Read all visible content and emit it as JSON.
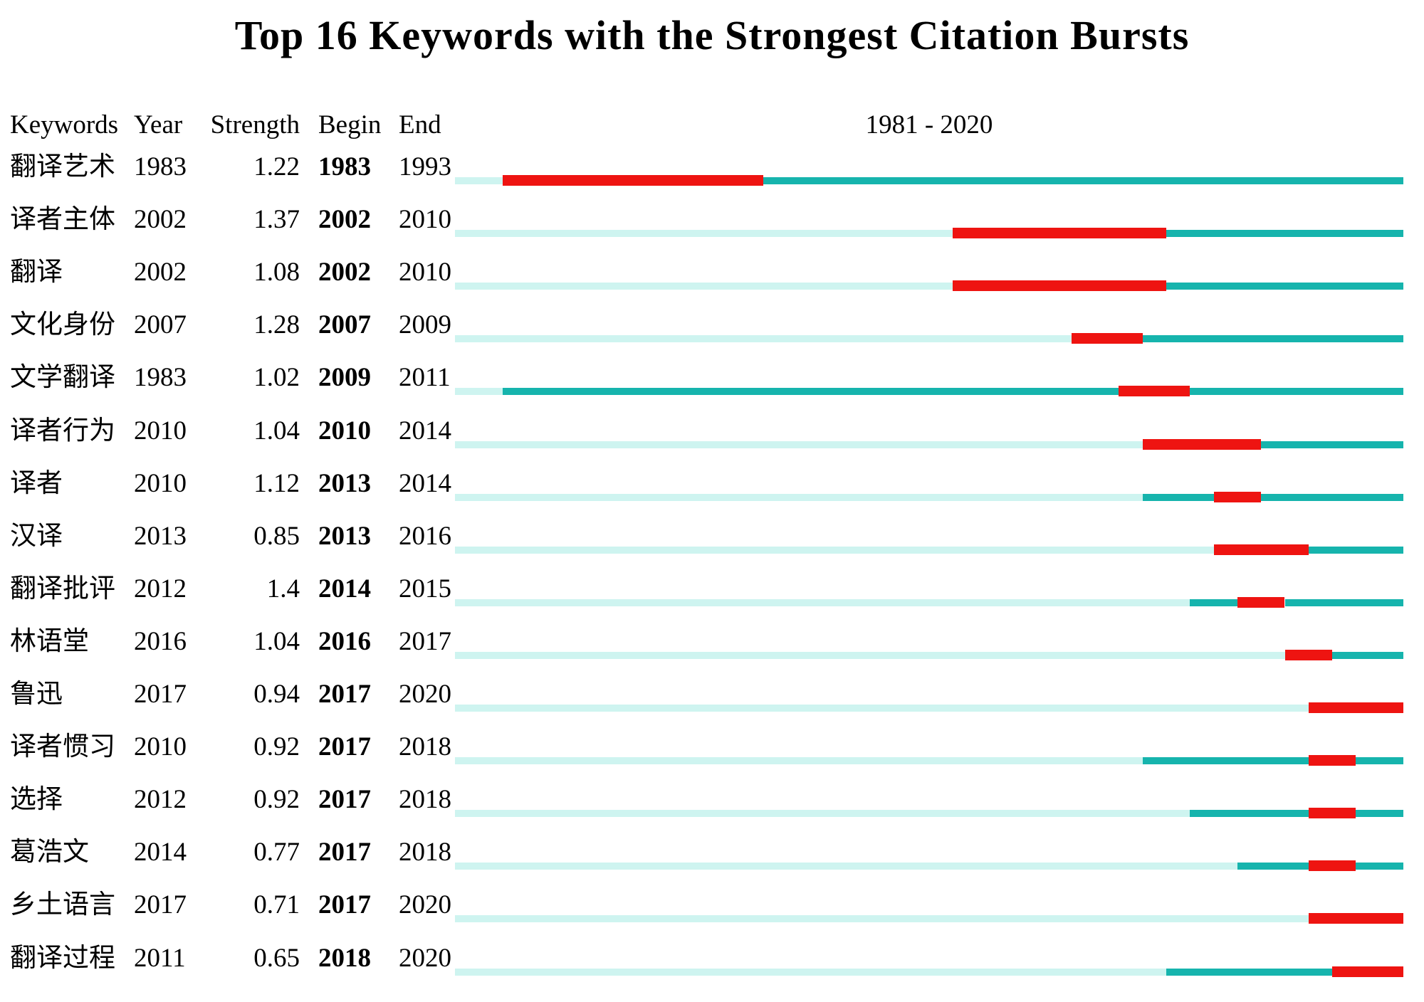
{
  "title": "Top 16 Keywords with the Strongest Citation Bursts",
  "columns": {
    "keywords": "Keywords",
    "year": "Year",
    "strength": "Strength",
    "begin": "Begin",
    "end": "End"
  },
  "timeline_label": "1981 - 2020",
  "colors": {
    "burst": "#ee1411",
    "active": "#16b4ad",
    "inactive": "#cef4f0"
  },
  "chart_data": {
    "type": "gantt",
    "subtype": "citation-burst-timeline",
    "title": "Top 16 Keywords with the Strongest Citation Bursts",
    "x_range": [
      1981,
      2020
    ],
    "legend_note": "pale = before first appearance, teal = active, red = burst interval",
    "rows": [
      {
        "keyword": "翻译艺术",
        "year": 1983,
        "strength": "1.22",
        "begin": 1983,
        "end": 1993
      },
      {
        "keyword": "译者主体",
        "year": 2002,
        "strength": "1.37",
        "begin": 2002,
        "end": 2010
      },
      {
        "keyword": "翻译",
        "year": 2002,
        "strength": "1.08",
        "begin": 2002,
        "end": 2010
      },
      {
        "keyword": "文化身份",
        "year": 2007,
        "strength": "1.28",
        "begin": 2007,
        "end": 2009
      },
      {
        "keyword": "文学翻译",
        "year": 1983,
        "strength": "1.02",
        "begin": 2009,
        "end": 2011
      },
      {
        "keyword": "译者行为",
        "year": 2010,
        "strength": "1.04",
        "begin": 2010,
        "end": 2014
      },
      {
        "keyword": "译者",
        "year": 2010,
        "strength": "1.12",
        "begin": 2013,
        "end": 2014
      },
      {
        "keyword": "汉译",
        "year": 2013,
        "strength": "0.85",
        "begin": 2013,
        "end": 2016
      },
      {
        "keyword": "翻译批评",
        "year": 2012,
        "strength": "1.4",
        "begin": 2014,
        "end": 2015
      },
      {
        "keyword": "林语堂",
        "year": 2016,
        "strength": "1.04",
        "begin": 2016,
        "end": 2017
      },
      {
        "keyword": "鲁迅",
        "year": 2017,
        "strength": "0.94",
        "begin": 2017,
        "end": 2020
      },
      {
        "keyword": "译者惯习",
        "year": 2010,
        "strength": "0.92",
        "begin": 2017,
        "end": 2018
      },
      {
        "keyword": "选择",
        "year": 2012,
        "strength": "0.92",
        "begin": 2017,
        "end": 2018
      },
      {
        "keyword": "葛浩文",
        "year": 2014,
        "strength": "0.77",
        "begin": 2017,
        "end": 2018
      },
      {
        "keyword": "乡土语言",
        "year": 2017,
        "strength": "0.71",
        "begin": 2017,
        "end": 2020
      },
      {
        "keyword": "翻译过程",
        "year": 2011,
        "strength": "0.65",
        "begin": 2018,
        "end": 2020
      }
    ]
  }
}
